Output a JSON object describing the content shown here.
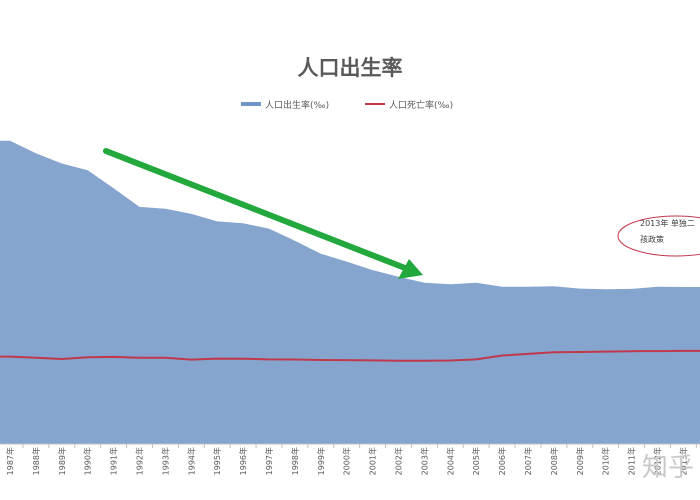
{
  "chart_data": {
    "type": "area",
    "title": "人口出生率",
    "categories": [
      "1987年",
      "1988年",
      "1989年",
      "1990年",
      "1991年",
      "1992年",
      "1993年",
      "1994年",
      "1995年",
      "1996年",
      "1997年",
      "1998年",
      "1999年",
      "2000年",
      "2001年",
      "2002年",
      "2003年",
      "2004年",
      "2005年",
      "2006年",
      "2007年",
      "2008年",
      "2009年",
      "2010年",
      "2011年",
      "2012年",
      "2013年"
    ],
    "series": [
      {
        "name": "人口出生率(‰)",
        "type": "area",
        "color": "#7094c5",
        "values": [
          23.33,
          22.37,
          21.58,
          21.06,
          19.68,
          18.24,
          18.09,
          17.7,
          17.12,
          16.98,
          16.57,
          15.64,
          14.64,
          14.03,
          13.38,
          12.86,
          12.41,
          12.29,
          12.4,
          12.09,
          12.1,
          12.14,
          11.95,
          11.9,
          11.93,
          12.1,
          12.08
        ]
      },
      {
        "name": "人口死亡率(‰)",
        "type": "line",
        "color": "#c0394b",
        "values": [
          6.72,
          6.64,
          6.54,
          6.67,
          6.7,
          6.64,
          6.64,
          6.49,
          6.57,
          6.56,
          6.51,
          6.5,
          6.46,
          6.45,
          6.43,
          6.41,
          6.4,
          6.42,
          6.51,
          6.81,
          6.93,
          7.06,
          7.08,
          7.11,
          7.14,
          7.15,
          7.16
        ]
      }
    ],
    "ylim": [
      0,
      26
    ],
    "legend_position": "top",
    "grid": false,
    "annotations": [
      {
        "type": "arrow",
        "color": "#22a83c"
      },
      {
        "type": "ellipse-callout",
        "text": "2013年 单独二孩政策",
        "color": "#c0394b"
      }
    ]
  },
  "watermark": "知乎"
}
